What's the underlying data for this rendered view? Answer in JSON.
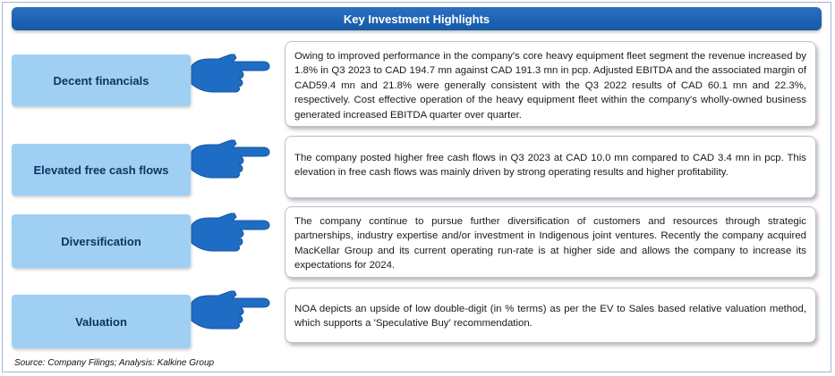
{
  "header": {
    "title": "Key Investment Highlights"
  },
  "highlights": [
    {
      "label": "Decent financials",
      "text": "Owing to improved performance in the company's core heavy equipment fleet segment the revenue increased by 1.8% in Q3 2023 to CAD 194.7 mn against CAD 191.3 mn in pcp. Adjusted EBITDA and the associated margin of CAD59.4 mn and 21.8% were generally consistent with the Q3 2022 results of CAD 60.1 mn and 22.3%, respectively. Cost effective operation of the heavy equipment fleet within the company's wholly-owned business generated increased EBITDA quarter over quarter."
    },
    {
      "label": "Elevated free cash flows",
      "text": "The company posted higher free cash flows in Q3 2023 at CAD 10.0 mn compared to CAD 3.4 mn in pcp. This elevation in free cash flows was mainly driven by strong operating results and higher profitability."
    },
    {
      "label": "Diversification",
      "text": "The company continue to pursue further diversification of customers and resources through strategic partnerships, industry expertise and/or investment in Indigenous joint ventures. Recently the company acquired MacKellar Group and its current operating run-rate is at higher side and allows the company to increase its expectations for 2024."
    },
    {
      "label": "Valuation",
      "text": "NOA depicts an upside of low double-digit (in % terms) as per the EV to Sales based relative valuation method, which supports a 'Speculative Buy' recommendation."
    }
  ],
  "footer": {
    "source": "Source: Company Filings; Analysis: Kalkine Group"
  },
  "colors": {
    "header": "#1c64b4",
    "label_bg": "#9fd0f3",
    "hand": "#1f6cc4"
  },
  "icons": {
    "pointer": "pointing-hand-icon"
  }
}
